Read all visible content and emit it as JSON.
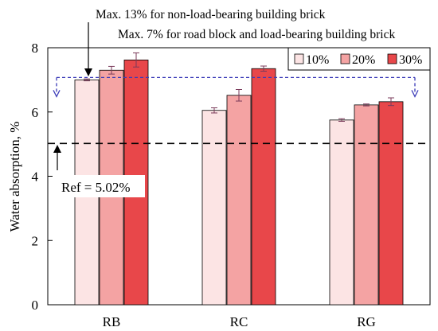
{
  "chart_data": {
    "type": "bar",
    "categories": [
      "RB",
      "RC",
      "RG"
    ],
    "series": [
      {
        "name": "10%",
        "values": [
          7.0,
          6.05,
          5.75
        ],
        "errors": [
          0.03,
          0.08,
          0.04
        ],
        "color": "#fce4e4"
      },
      {
        "name": "20%",
        "values": [
          7.3,
          6.52,
          6.22
        ],
        "errors": [
          0.12,
          0.18,
          0.03
        ],
        "color": "#f4a3a3"
      },
      {
        "name": "30%",
        "values": [
          7.62,
          7.35,
          6.32
        ],
        "errors": [
          0.22,
          0.08,
          0.12
        ],
        "color": "#e8474a"
      }
    ],
    "ylabel": "Water absorption, %",
    "ylim": [
      0,
      8
    ],
    "yticks": [
      "0",
      "2",
      "4",
      "6",
      "8"
    ],
    "grid": false,
    "legend_position": "top-right",
    "reference_lines": [
      {
        "value": 5.02,
        "style": "dashed",
        "color": "#000000"
      },
      {
        "value": 7.0,
        "style": "dashed",
        "color": "#3b3bb8"
      }
    ],
    "annotations": {
      "max13": "Max. 13% for non-load-bearing  building brick",
      "max7": "Max. 7% for road block and load-bearing building brick",
      "ref": "Ref = 5.02%"
    }
  }
}
